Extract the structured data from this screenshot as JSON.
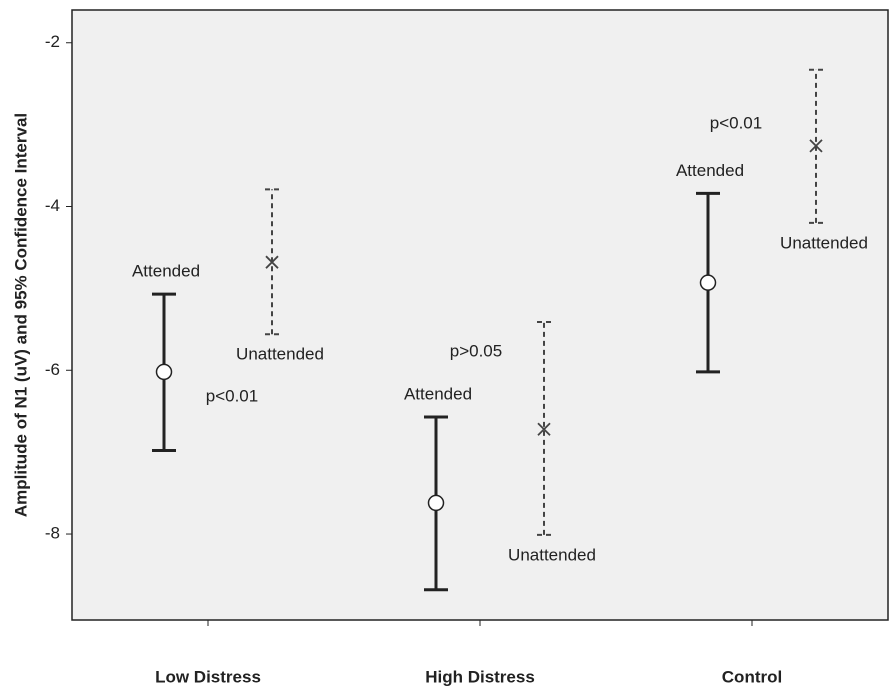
{
  "chart_data": {
    "type": "errorbar",
    "ylabel": "Amplitude of N1 (uV) and 95% Confidence Interval",
    "categories": [
      "Low Distress",
      "High Distress",
      "Control"
    ],
    "ylim": [
      -9.05,
      -1.6
    ],
    "yticks": [
      -2,
      -4,
      -6,
      -8
    ],
    "series": [
      {
        "name": "Attended",
        "color": "#222222",
        "marker": "circle",
        "dashed": false,
        "values": [
          -6.02,
          -7.62,
          -4.93
        ],
        "lower": [
          -6.98,
          -8.68,
          -6.02
        ],
        "upper": [
          -5.07,
          -6.57,
          -3.84
        ]
      },
      {
        "name": "Unattended",
        "color": "#444444",
        "marker": "x",
        "dashed": true,
        "values": [
          -4.68,
          -6.72,
          -3.26
        ],
        "lower": [
          -5.56,
          -8.01,
          -4.2
        ],
        "upper": [
          -3.79,
          -5.41,
          -2.33
        ]
      }
    ],
    "annotations": [
      "p<0.01",
      "p>0.05",
      "p<0.01"
    ]
  }
}
